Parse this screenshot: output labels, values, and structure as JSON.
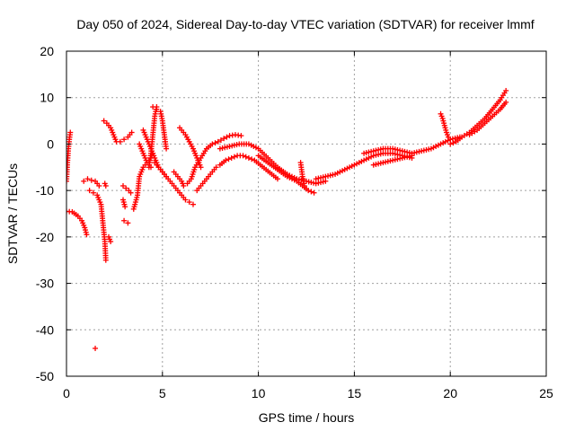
{
  "chart_data": {
    "type": "scatter",
    "title": "Day 050 of 2024, Sidereal Day-to-day VTEC variation (SDTVAR) for receiver lmmf",
    "xlabel": "GPS time / hours",
    "ylabel": "SDTVAR / TECUs",
    "xlim": [
      0,
      25
    ],
    "ylim": [
      -50,
      20
    ],
    "xticks": [
      "0",
      "5",
      "10",
      "15",
      "20",
      "25"
    ],
    "yticks": [
      "20",
      "10",
      "0",
      "-10",
      "-20",
      "-30",
      "-40",
      "-50"
    ],
    "grid": true,
    "marker": "+",
    "color": "#ff0000",
    "series": [
      {
        "name": "arc-01",
        "x": [
          0.0,
          0.05,
          0.1,
          0.15,
          0.2
        ],
        "y": [
          -8,
          -4,
          -1,
          1,
          2.5
        ]
      },
      {
        "name": "arc-02",
        "x": [
          0.0,
          0.3,
          0.6,
          0.8,
          0.95,
          1.05
        ],
        "y": [
          -14.5,
          -14.6,
          -15.5,
          -16.5,
          -18,
          -19.5
        ]
      },
      {
        "name": "arc-03",
        "x": [
          0.9,
          1.1,
          1.3,
          1.5,
          1.7
        ],
        "y": [
          -8,
          -7.5,
          -7.8,
          -8,
          -9
        ]
      },
      {
        "name": "arc-04",
        "x": [
          1.2,
          1.4,
          1.6,
          1.8,
          1.9,
          2.0,
          2.05
        ],
        "y": [
          -10,
          -10.5,
          -11,
          -13,
          -17,
          -21,
          -25
        ]
      },
      {
        "name": "arc-05",
        "x": [
          2.2,
          2.3
        ],
        "y": [
          -20,
          -21
        ]
      },
      {
        "name": "arc-06",
        "x": [
          2.0,
          2.05
        ],
        "y": [
          -8.5,
          -9
        ]
      },
      {
        "name": "arc-07",
        "x": [
          1.95,
          2.1,
          2.3,
          2.5,
          2.6,
          2.8,
          3.0,
          3.2,
          3.4
        ],
        "y": [
          5,
          4.5,
          3.5,
          1.5,
          0.5,
          0.5,
          1,
          1.5,
          2.5
        ]
      },
      {
        "name": "arc-08",
        "x": [
          2.95,
          3.1,
          3.25,
          3.35
        ],
        "y": [
          -9,
          -9.5,
          -10,
          -10.5
        ]
      },
      {
        "name": "arc-09",
        "x": [
          2.95,
          3.05
        ],
        "y": [
          -12,
          -13.5
        ]
      },
      {
        "name": "arc-10",
        "x": [
          3.0,
          3.2
        ],
        "y": [
          -16.5,
          -17
        ]
      },
      {
        "name": "arc-11",
        "x": [
          1.5
        ],
        "y": [
          -44
        ]
      },
      {
        "name": "arc-12",
        "x": [
          3.5,
          3.7,
          3.8,
          4.0,
          4.2,
          4.4,
          4.5
        ],
        "y": [
          -14,
          -11,
          -7,
          -5,
          -4,
          -3,
          -2
        ]
      },
      {
        "name": "arc-13",
        "x": [
          3.8,
          4.0,
          4.2,
          4.4
        ],
        "y": [
          0,
          -2,
          -4,
          -5
        ]
      },
      {
        "name": "arc-14",
        "x": [
          4.0,
          4.2,
          4.4,
          4.6,
          4.8,
          5.0,
          5.2
        ],
        "y": [
          3,
          1,
          -1,
          -3,
          -5,
          -6,
          -7
        ]
      },
      {
        "name": "arc-15",
        "x": [
          4.3,
          4.4,
          4.5,
          4.6,
          4.7
        ],
        "y": [
          -5,
          -2,
          2,
          6,
          8
        ]
      },
      {
        "name": "arc-16",
        "x": [
          4.6,
          4.8,
          5.0,
          5.2,
          5.4,
          5.6,
          5.8,
          6.0,
          6.2,
          6.4,
          6.6
        ],
        "y": [
          -4,
          -5,
          -6,
          -7,
          -8,
          -9,
          -10,
          -11,
          -12,
          -12.5,
          -13
        ]
      },
      {
        "name": "arc-17",
        "x": [
          4.5,
          4.7,
          4.9,
          5.0,
          5.1,
          5.2
        ],
        "y": [
          8,
          7.5,
          7,
          5,
          2,
          -1
        ]
      },
      {
        "name": "arc-18",
        "x": [
          5.6,
          5.8,
          6.0,
          6.1,
          6.3,
          6.5,
          6.7,
          7.0,
          7.3,
          7.6,
          7.9,
          8.2,
          8.5,
          8.8,
          9.1
        ],
        "y": [
          -6,
          -7,
          -8,
          -9,
          -8.5,
          -7.5,
          -5,
          -3,
          -1,
          0,
          0.5,
          1.2,
          1.8,
          2,
          1.8
        ]
      },
      {
        "name": "arc-19",
        "x": [
          5.9,
          6.0,
          6.2,
          6.4,
          6.6,
          6.8,
          7.0
        ],
        "y": [
          3.5,
          3,
          2,
          0.5,
          -1,
          -3,
          -5
        ]
      },
      {
        "name": "arc-20",
        "x": [
          6.8,
          7.0,
          7.2,
          7.4,
          7.6,
          7.8,
          8.0,
          8.3,
          8.6,
          8.9,
          9.2,
          9.5,
          9.8,
          10.1,
          10.4,
          10.7,
          11.0
        ],
        "y": [
          -10,
          -9,
          -8,
          -7,
          -6,
          -5,
          -4.5,
          -3.5,
          -3,
          -2.5,
          -2.5,
          -3,
          -3.5,
          -4.5,
          -5.5,
          -6.5,
          -7.5
        ]
      },
      {
        "name": "arc-21",
        "x": [
          8.0,
          8.5,
          9.0,
          9.5,
          10.0,
          10.5,
          11.0,
          11.5,
          12.0,
          12.5,
          13.0,
          13.5
        ],
        "y": [
          -1,
          -0.5,
          0,
          0,
          -1,
          -3,
          -5,
          -6.5,
          -7.5,
          -8,
          -8.5,
          -8
        ]
      },
      {
        "name": "arc-22",
        "x": [
          10.0,
          10.5,
          11.0,
          11.5,
          12.0,
          12.3,
          12.6,
          12.9
        ],
        "y": [
          -2.5,
          -4,
          -5.5,
          -7,
          -8,
          -9,
          -10,
          -10.5
        ]
      },
      {
        "name": "arc-23",
        "x": [
          12.2,
          12.3,
          12.4
        ],
        "y": [
          -4,
          -7,
          -9
        ]
      },
      {
        "name": "arc-24",
        "x": [
          13.0,
          13.5,
          14.0,
          14.5,
          15.0,
          15.5,
          16.0,
          16.5,
          17.0,
          17.5,
          18.0
        ],
        "y": [
          -7.5,
          -7,
          -6.5,
          -5.5,
          -4.5,
          -3.5,
          -2.5,
          -2,
          -2,
          -2.5,
          -3
        ]
      },
      {
        "name": "arc-25",
        "x": [
          15.5,
          16.0,
          16.5,
          17.0,
          17.5,
          18.0,
          18.5,
          19.0,
          19.5,
          20.0,
          20.5
        ],
        "y": [
          -2,
          -1.5,
          -1,
          -1,
          -1.5,
          -2,
          -1.5,
          -1,
          0,
          1,
          1.5
        ]
      },
      {
        "name": "arc-26",
        "x": [
          16.0,
          16.5,
          17.0,
          17.5,
          18.0
        ],
        "y": [
          -4.5,
          -4,
          -3.5,
          -3,
          -2.5
        ]
      },
      {
        "name": "arc-27",
        "x": [
          19.5,
          19.6,
          19.7,
          19.8,
          19.9,
          20.0
        ],
        "y": [
          6.5,
          5.5,
          4,
          2.5,
          1.5,
          1
        ]
      },
      {
        "name": "arc-28",
        "x": [
          20.0,
          20.3,
          20.6,
          21.0,
          21.4,
          21.8,
          22.2,
          22.6,
          22.9
        ],
        "y": [
          0,
          0.5,
          1.5,
          2.5,
          4,
          5.5,
          7.5,
          9.5,
          11.5
        ]
      },
      {
        "name": "arc-29",
        "x": [
          21.0,
          21.4,
          21.8,
          22.2,
          22.6,
          22.9
        ],
        "y": [
          2,
          3,
          4.5,
          6,
          7.5,
          9
        ]
      }
    ]
  }
}
